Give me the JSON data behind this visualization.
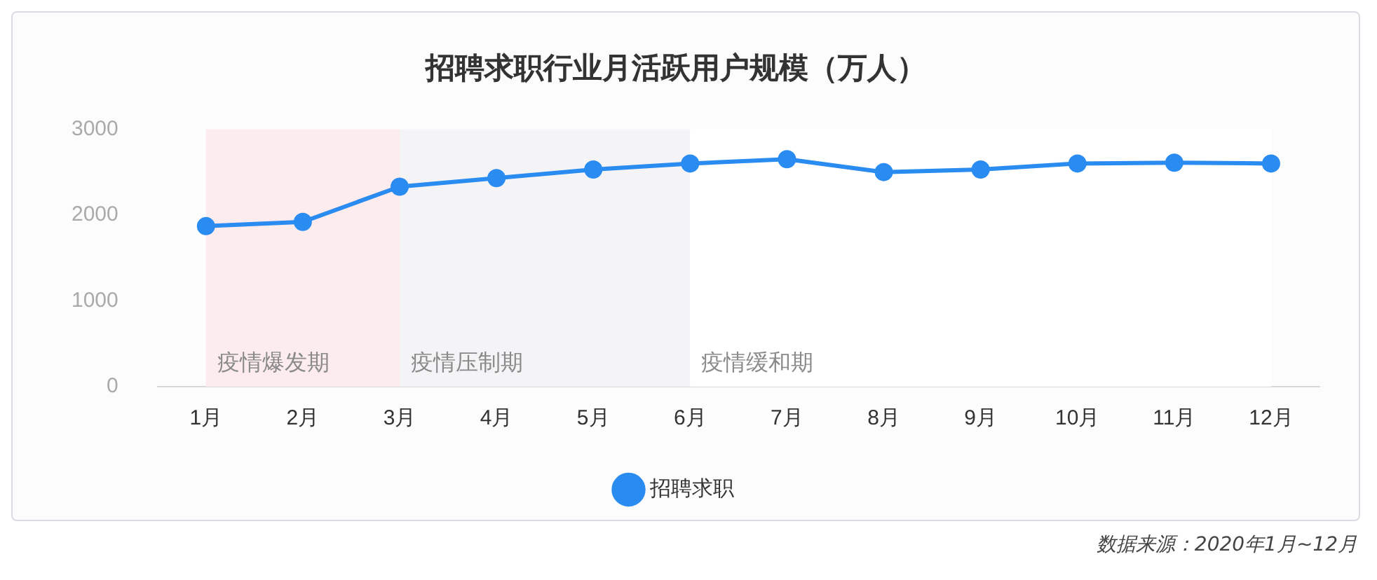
{
  "chart_data": {
    "type": "line",
    "title": "招聘求职行业月活跃用户规模（万人）",
    "categories": [
      "1月",
      "2月",
      "3月",
      "4月",
      "5月",
      "6月",
      "7月",
      "8月",
      "9月",
      "10月",
      "11月",
      "12月"
    ],
    "series": [
      {
        "name": "招聘求职",
        "color": "#2a8cf0",
        "values": [
          1870,
          1920,
          2330,
          2430,
          2530,
          2600,
          2650,
          2500,
          2530,
          2600,
          2610,
          2600
        ]
      }
    ],
    "ylim": [
      0,
      3000
    ],
    "yticks": [
      0,
      1000,
      2000,
      3000
    ],
    "grid": false,
    "legend": "bottom",
    "marker": "circle",
    "line_style": "solid",
    "bands": [
      {
        "axis": "x",
        "from": "1月",
        "to": "3月",
        "label": "疫情爆发期",
        "color": "#fdecee"
      },
      {
        "axis": "x",
        "from": "3月",
        "to": "6月",
        "label": "疫情压制期",
        "color": "#f4f4f6"
      },
      {
        "axis": "x",
        "from": "6月",
        "to": "12月",
        "label": "疫情缓和期",
        "color": "#ffffff"
      }
    ],
    "annotations": [
      "数据来源：2020年1月~12月"
    ]
  }
}
